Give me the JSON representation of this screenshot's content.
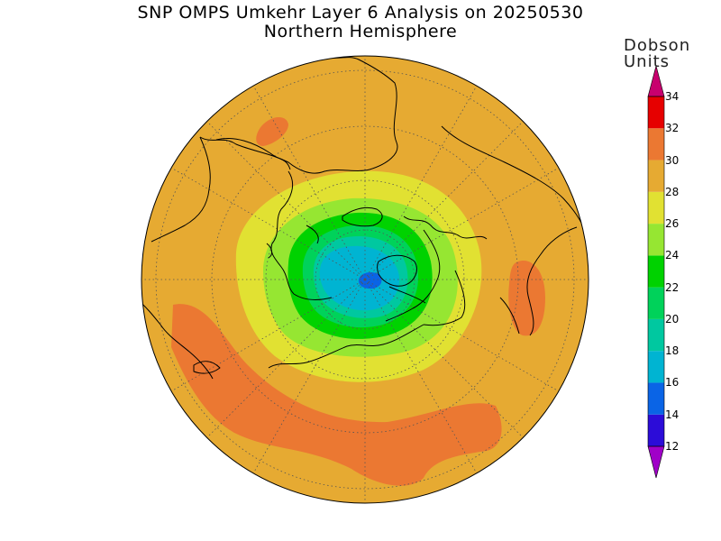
{
  "title": {
    "line1": "SNP OMPS Umkehr Layer 6 Analysis on 20250530",
    "line2": "Northern Hemisphere"
  },
  "colorbar": {
    "units_line1": "Dobson",
    "units_line2": "Units",
    "levels": [
      {
        "value": "12",
        "color": "#8c00d8"
      },
      {
        "value": "14",
        "color": "#2c0cd8"
      },
      {
        "value": "16",
        "color": "#0a64e6"
      },
      {
        "value": "18",
        "color": "#00b4d2"
      },
      {
        "value": "20",
        "color": "#00c8a0"
      },
      {
        "value": "22",
        "color": "#00d25a"
      },
      {
        "value": "24",
        "color": "#00d200"
      },
      {
        "value": "26",
        "color": "#96e632"
      },
      {
        "value": "28",
        "color": "#e1e132"
      },
      {
        "value": "30",
        "color": "#e6aa32"
      },
      {
        "value": "32",
        "color": "#eb7832"
      },
      {
        "value": "34",
        "color": "#e60000"
      }
    ],
    "min_arrow_color": "#a000c8",
    "max_arrow_color": "#c8006e"
  },
  "map": {
    "projection": "north polar stereographic",
    "background_color": "#e6aa32",
    "grid": "dotted"
  }
}
